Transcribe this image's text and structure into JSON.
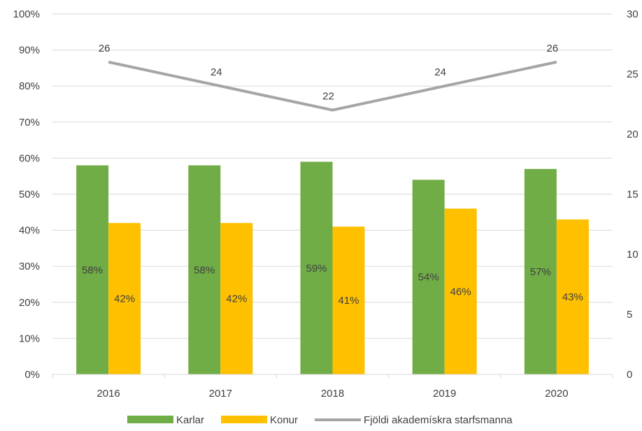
{
  "chart_data": {
    "type": "bar",
    "categories": [
      "2016",
      "2017",
      "2018",
      "2019",
      "2020"
    ],
    "series": [
      {
        "name": "Karlar",
        "kind": "bar",
        "axis": "left",
        "color": "#70ad47",
        "values": [
          58,
          58,
          59,
          54,
          57
        ],
        "labels": [
          "58%",
          "58%",
          "59%",
          "54%",
          "57%"
        ]
      },
      {
        "name": "Konur",
        "kind": "bar",
        "axis": "left",
        "color": "#ffc000",
        "values": [
          42,
          42,
          41,
          46,
          43
        ],
        "labels": [
          "42%",
          "42%",
          "41%",
          "46%",
          "43%"
        ]
      },
      {
        "name": "Fjöldi akademískra starfsmanna",
        "kind": "line",
        "axis": "right",
        "color": "#a5a5a5",
        "values": [
          26,
          24,
          22,
          24,
          26
        ],
        "labels": [
          "26",
          "24",
          "22",
          "24",
          "26"
        ]
      }
    ],
    "y_left": {
      "ylim": [
        0,
        100
      ],
      "ticks": [
        0,
        10,
        20,
        30,
        40,
        50,
        60,
        70,
        80,
        90,
        100
      ],
      "tick_labels": [
        "0%",
        "10%",
        "20%",
        "30%",
        "40%",
        "50%",
        "60%",
        "70%",
        "80%",
        "90%",
        "100%"
      ]
    },
    "y_right": {
      "ylim": [
        0,
        30
      ],
      "ticks": [
        0,
        5,
        10,
        15,
        20,
        25,
        30
      ],
      "tick_labels": [
        "0",
        "5",
        "10",
        "15",
        "20",
        "25",
        "30"
      ]
    },
    "title": "",
    "xlabel": "",
    "ylabel": "",
    "grid": true,
    "gridline_color": "#d9d9d9",
    "legend_position": "bottom"
  }
}
